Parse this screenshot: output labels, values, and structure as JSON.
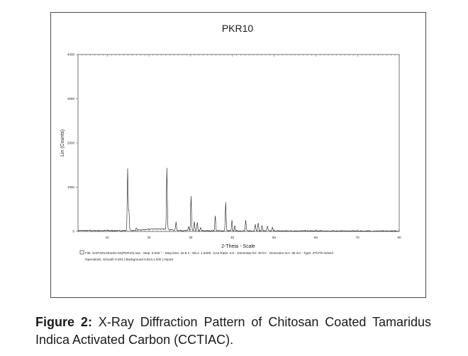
{
  "caption": {
    "label": "Figure 2:",
    "text": "X-Ray Diffraction Pattern of Chitosan Coated Tamaridus Indica Activated Carbon (CCTIAC)."
  },
  "chart_data": {
    "type": "line",
    "title": "PKR10",
    "xlabel": "2-Theta - Scale",
    "ylabel": "Lin (Counts)",
    "xlim": [
      3,
      80
    ],
    "ylim": [
      0,
      4000
    ],
    "xticks": [
      10,
      20,
      30,
      40,
      50,
      60,
      70,
      80
    ],
    "yticks": [
      0,
      1000,
      2000,
      3000,
      4000
    ],
    "color": "#1a1a1a",
    "baseline": {
      "start": 20,
      "hump_center": 22,
      "hump_height": 40,
      "hump_width": 4
    },
    "peaks": [
      {
        "x": 14.9,
        "y": 1390
      },
      {
        "x": 15.2,
        "y": 460
      },
      {
        "x": 17.0,
        "y": 60
      },
      {
        "x": 24.3,
        "y": 1400
      },
      {
        "x": 26.5,
        "y": 180
      },
      {
        "x": 29.5,
        "y": 100
      },
      {
        "x": 30.1,
        "y": 780
      },
      {
        "x": 30.9,
        "y": 200
      },
      {
        "x": 31.6,
        "y": 180
      },
      {
        "x": 32.4,
        "y": 70
      },
      {
        "x": 35.9,
        "y": 350
      },
      {
        "x": 38.4,
        "y": 640
      },
      {
        "x": 39.9,
        "y": 230
      },
      {
        "x": 40.6,
        "y": 110
      },
      {
        "x": 43.2,
        "y": 240
      },
      {
        "x": 45.5,
        "y": 160
      },
      {
        "x": 46.2,
        "y": 180
      },
      {
        "x": 47.1,
        "y": 130
      },
      {
        "x": 48.4,
        "y": 110
      },
      {
        "x": 49.6,
        "y": 80
      }
    ],
    "legend_lines": [
      "File: SAIFXR140115C-04(PKR10).raw - Step: 0.020 ° - Step time: 32.8 s - WL1: 1.5406 - kA2 Ratio: 0.5 - Generator kV: 40 kV - Generator mA: 35 mA - Type: 2Th/Th locked",
      "Operations: Smooth 0.204 | Background 0.813,1.000 | Import"
    ]
  }
}
